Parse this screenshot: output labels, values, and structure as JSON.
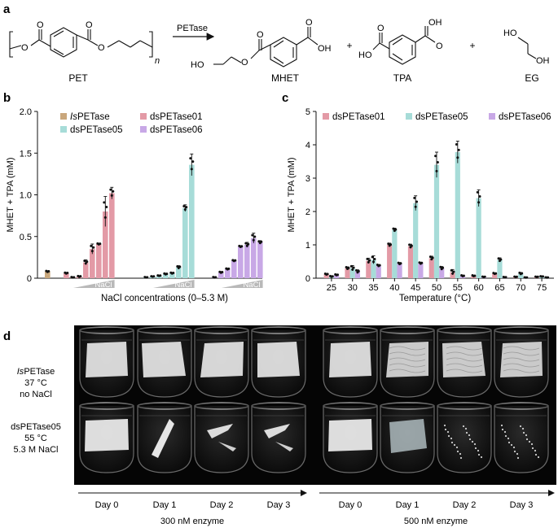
{
  "panels": {
    "a": "a",
    "b": "b",
    "c": "c",
    "d": "d"
  },
  "scheme": {
    "enzyme": "PETase",
    "pet_label": "PET",
    "n": "n",
    "products": [
      "MHET",
      "TPA",
      "EG"
    ],
    "plus": "+",
    "atoms": {
      "O": "O",
      "OH": "OH",
      "HO": "HO"
    }
  },
  "chart_data": [
    {
      "type": "bar",
      "panel": "b",
      "xlabel": "NaCl concentrations (0–5.3 M)",
      "ylabel": "MHET + TPA (mM)",
      "ylim": [
        0,
        2.0
      ],
      "yticks": [
        "0",
        "0.5",
        "1.0",
        "1.5",
        "2.0"
      ],
      "legend": [
        {
          "name": "IsPETase",
          "italic_prefix": "Is",
          "rest": "PETase",
          "color": "#c9a77c"
        },
        {
          "name": "dsPETase01",
          "color": "#e39aa6"
        },
        {
          "name": "dsPETase05",
          "color": "#a7dcd8"
        },
        {
          "name": "dsPETase06",
          "color": "#c8a8e6"
        }
      ],
      "wedge_label": "NaCl",
      "groups": [
        {
          "name": "IsPETase",
          "values": [
            0.08
          ],
          "errors": [
            0.01
          ]
        },
        {
          "name": "dsPETase01",
          "values": [
            0.06,
            0.01,
            0.02,
            0.19,
            0.35,
            0.41,
            0.8,
            1.02
          ],
          "errors": [
            0.01,
            0.005,
            0.01,
            0.03,
            0.06,
            0.01,
            0.18,
            0.07
          ]
        },
        {
          "name": "dsPETase05",
          "values": [
            0.01,
            0.02,
            0.03,
            0.05,
            0.06,
            0.13,
            0.84,
            1.36
          ],
          "errors": [
            0.005,
            0.005,
            0.005,
            0.01,
            0.01,
            0.02,
            0.04,
            0.13
          ]
        },
        {
          "name": "dsPETase06",
          "values": [
            0.01,
            0.07,
            0.11,
            0.21,
            0.38,
            0.4,
            0.48,
            0.43
          ],
          "errors": [
            0.005,
            0.01,
            0.01,
            0.01,
            0.01,
            0.03,
            0.06,
            0.02
          ]
        }
      ]
    },
    {
      "type": "bar",
      "panel": "c",
      "xlabel": "Temperature (°C)",
      "ylabel": "MHET + TPA (mM)",
      "ylim": [
        0,
        5
      ],
      "yticks": [
        "0",
        "1",
        "2",
        "3",
        "4",
        "5"
      ],
      "categories": [
        "25",
        "30",
        "35",
        "40",
        "45",
        "50",
        "55",
        "60",
        "65",
        "70",
        "75"
      ],
      "series": [
        {
          "name": "dsPETase01",
          "color": "#e39aa6",
          "values": [
            0.12,
            0.3,
            0.52,
            1.0,
            0.96,
            0.6,
            0.18,
            0.07,
            0.14,
            0.04,
            0.04
          ],
          "errors": [
            0.02,
            0.04,
            0.08,
            0.05,
            0.06,
            0.06,
            0.08,
            0.02,
            0.02,
            0.01,
            0.01
          ]
        },
        {
          "name": "dsPETase05",
          "color": "#a7dcd8",
          "values": [
            0.05,
            0.3,
            0.55,
            1.45,
            2.25,
            3.4,
            3.78,
            2.4,
            0.55,
            0.14,
            0.05
          ],
          "errors": [
            0.02,
            0.08,
            0.12,
            0.05,
            0.22,
            0.38,
            0.33,
            0.25,
            0.06,
            0.03,
            0.01
          ]
        },
        {
          "name": "dsPETase06",
          "color": "#c8a8e6",
          "values": [
            0.1,
            0.2,
            0.38,
            0.44,
            0.45,
            0.3,
            0.07,
            0.04,
            0.03,
            0.02,
            0.02
          ],
          "errors": [
            0.02,
            0.05,
            0.03,
            0.03,
            0.03,
            0.05,
            0.02,
            0.01,
            0.01,
            0.005,
            0.005
          ]
        }
      ]
    }
  ],
  "photos": {
    "rows": [
      {
        "lines": [
          {
            "italic": "Is",
            "text": "PETase"
          },
          {
            "text": "37 °C"
          },
          {
            "text": "no NaCl"
          }
        ]
      },
      {
        "lines": [
          {
            "text": "dsPETase05"
          },
          {
            "text": "55 °C"
          },
          {
            "text": "5.3 M NaCl"
          }
        ]
      }
    ],
    "days": [
      "Day 0",
      "Day 1",
      "Day 2",
      "Day 3",
      "Day 0",
      "Day 1",
      "Day 2",
      "Day 3"
    ],
    "groups": [
      "300 nM enzyme",
      "500 nM enzyme"
    ]
  }
}
